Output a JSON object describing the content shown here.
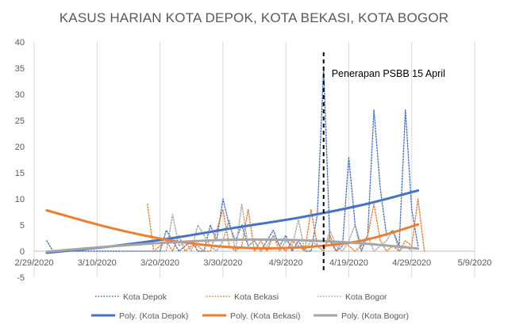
{
  "chart_data": {
    "type": "line",
    "title": "KASUS HARIAN KOTA DEPOK, KOTA BEKASI, KOTA BOGOR",
    "xlabel": "",
    "ylabel": "",
    "x_tick_labels": [
      "2/29/2020",
      "3/10/2020",
      "3/20/2020",
      "3/30/2020",
      "4/9/2020",
      "4/19/2020",
      "4/29/2020",
      "5/9/2020"
    ],
    "xlim": [
      "2020-02-29",
      "2020-05-09"
    ],
    "ylim": [
      -5,
      40
    ],
    "y_ticks": [
      -5,
      0,
      5,
      10,
      15,
      20,
      25,
      30,
      35,
      40
    ],
    "grid": "vertical",
    "legend_position": "bottom",
    "annotation": {
      "label": "Penerapan PSBB 15 April",
      "x": "2020-04-15",
      "style": "dashed"
    },
    "series": [
      {
        "name": "Kota Depok",
        "kind": "daily",
        "color": "#4472C4",
        "x": [
          "2020-03-02",
          "2020-03-03",
          "2020-03-04",
          "2020-03-05",
          "2020-03-06",
          "2020-03-07",
          "2020-03-08",
          "2020-03-09",
          "2020-03-10",
          "2020-03-11",
          "2020-03-12",
          "2020-03-13",
          "2020-03-14",
          "2020-03-15",
          "2020-03-16",
          "2020-03-17",
          "2020-03-18",
          "2020-03-19",
          "2020-03-20",
          "2020-03-21",
          "2020-03-22",
          "2020-03-23",
          "2020-03-24",
          "2020-03-25",
          "2020-03-26",
          "2020-03-27",
          "2020-03-28",
          "2020-03-29",
          "2020-03-30",
          "2020-03-31",
          "2020-04-01",
          "2020-04-02",
          "2020-04-03",
          "2020-04-04",
          "2020-04-05",
          "2020-04-06",
          "2020-04-07",
          "2020-04-08",
          "2020-04-09",
          "2020-04-10",
          "2020-04-11",
          "2020-04-12",
          "2020-04-13",
          "2020-04-14",
          "2020-04-15",
          "2020-04-16",
          "2020-04-17",
          "2020-04-18",
          "2020-04-19",
          "2020-04-20",
          "2020-04-21",
          "2020-04-22",
          "2020-04-23",
          "2020-04-24",
          "2020-04-25",
          "2020-04-26",
          "2020-04-27",
          "2020-04-28",
          "2020-04-29",
          "2020-04-30"
        ],
        "y": [
          2,
          0,
          0,
          0,
          0,
          0,
          0,
          0,
          0,
          0,
          0,
          0,
          0,
          0,
          0,
          0,
          0,
          0,
          0,
          4,
          2,
          0,
          1,
          2,
          0,
          0,
          5,
          2,
          10,
          5,
          2,
          5,
          1,
          2,
          0,
          2,
          4,
          1,
          3,
          0,
          2,
          0,
          0,
          7,
          35,
          2,
          0,
          1,
          18,
          5,
          0,
          3,
          27,
          12,
          3,
          4,
          1,
          27,
          8,
          1
        ]
      },
      {
        "name": "Kota Bekasi",
        "kind": "daily",
        "color": "#ED7D31",
        "x": [
          "2020-03-18",
          "2020-03-19",
          "2020-03-20",
          "2020-03-21",
          "2020-03-22",
          "2020-03-23",
          "2020-03-24",
          "2020-03-25",
          "2020-03-26",
          "2020-03-27",
          "2020-03-28",
          "2020-03-29",
          "2020-03-30",
          "2020-03-31",
          "2020-04-01",
          "2020-04-02",
          "2020-04-03",
          "2020-04-04",
          "2020-04-05",
          "2020-04-06",
          "2020-04-07",
          "2020-04-08",
          "2020-04-09",
          "2020-04-10",
          "2020-04-11",
          "2020-04-12",
          "2020-04-13",
          "2020-04-14",
          "2020-04-15",
          "2020-04-16",
          "2020-04-17",
          "2020-04-18",
          "2020-04-19",
          "2020-04-20",
          "2020-04-21",
          "2020-04-22",
          "2020-04-23",
          "2020-04-24",
          "2020-04-25",
          "2020-04-26",
          "2020-04-27",
          "2020-04-28",
          "2020-04-29",
          "2020-04-30",
          "2020-05-01"
        ],
        "y": [
          9,
          0,
          1,
          2,
          0,
          3,
          0,
          1,
          1,
          0,
          0,
          4,
          8,
          1,
          0,
          1,
          8,
          0,
          2,
          0,
          3,
          1,
          0,
          2,
          1,
          0,
          8,
          1,
          0,
          3,
          0,
          2,
          1,
          0,
          1,
          3,
          9,
          2,
          0,
          1,
          0,
          2,
          1,
          10,
          0
        ]
      },
      {
        "name": "Kota Bogor",
        "kind": "daily",
        "color": "#A5A5A5",
        "x": [
          "2020-03-14",
          "2020-03-15",
          "2020-03-16",
          "2020-03-17",
          "2020-03-18",
          "2020-03-19",
          "2020-03-20",
          "2020-03-21",
          "2020-03-22",
          "2020-03-23",
          "2020-03-24",
          "2020-03-25",
          "2020-03-26",
          "2020-03-27",
          "2020-03-28",
          "2020-03-29",
          "2020-03-30",
          "2020-03-31",
          "2020-04-01",
          "2020-04-02",
          "2020-04-03",
          "2020-04-04",
          "2020-04-05",
          "2020-04-06",
          "2020-04-07",
          "2020-04-08",
          "2020-04-09",
          "2020-04-10",
          "2020-04-11",
          "2020-04-12",
          "2020-04-13",
          "2020-04-14",
          "2020-04-15",
          "2020-04-16",
          "2020-04-17",
          "2020-04-18",
          "2020-04-19",
          "2020-04-20",
          "2020-04-21",
          "2020-04-22",
          "2020-04-23",
          "2020-04-24",
          "2020-04-25",
          "2020-04-26",
          "2020-04-27",
          "2020-04-28",
          "2020-04-29"
        ],
        "y": [
          0,
          0,
          0,
          0,
          0,
          0,
          0,
          0,
          7,
          1,
          2,
          0,
          5,
          3,
          1,
          0,
          2,
          6,
          0,
          9,
          1,
          2,
          0,
          1,
          3,
          0,
          2,
          1,
          6,
          0,
          2,
          1,
          0,
          4,
          1,
          0,
          2,
          5,
          1,
          3,
          0,
          1,
          2,
          4,
          0,
          1,
          0
        ]
      },
      {
        "name": "Poly. (Kota Depok)",
        "kind": "trend",
        "color": "#4472C4",
        "x": [
          "2020-03-02",
          "2020-03-12",
          "2020-03-22",
          "2020-04-01",
          "2020-04-11",
          "2020-04-21",
          "2020-04-30"
        ],
        "y": [
          -0.3,
          0.9,
          2.5,
          4.5,
          6.4,
          8.8,
          11.6
        ]
      },
      {
        "name": "Poly. (Kota Bekasi)",
        "kind": "trend",
        "color": "#ED7D31",
        "x": [
          "2020-03-02",
          "2020-03-12",
          "2020-03-22",
          "2020-04-01",
          "2020-04-11",
          "2020-04-21",
          "2020-04-30"
        ],
        "y": [
          7.8,
          4.5,
          2.0,
          0.7,
          0.7,
          2.0,
          5.1
        ]
      },
      {
        "name": "Poly. (Kota Bogor)",
        "kind": "trend",
        "color": "#A5A5A5",
        "x": [
          "2020-03-02",
          "2020-03-12",
          "2020-03-22",
          "2020-04-01",
          "2020-04-11",
          "2020-04-21",
          "2020-04-30"
        ],
        "y": [
          -0.1,
          0.9,
          1.7,
          2.2,
          2.1,
          1.5,
          0.5
        ]
      }
    ]
  }
}
